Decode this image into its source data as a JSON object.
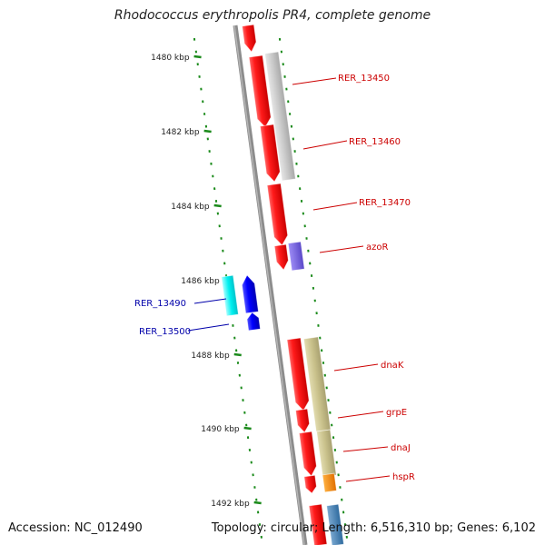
{
  "title": "Rhodococcus erythropolis PR4, complete genome",
  "footer": {
    "accession": "Accession: NC_012490",
    "topology": "Topology: circular; Length: 6,516,310 bp; Genes: 6,102"
  },
  "ruler": {
    "unit": "kbp",
    "labels": [
      "1480 kbp",
      "1482 kbp",
      "1484 kbp",
      "1486 kbp",
      "1488 kbp",
      "1490 kbp",
      "1492 kbp"
    ]
  },
  "gene_labels": [
    {
      "name": "RER_13450",
      "color": "#cc0000"
    },
    {
      "name": "RER_13460",
      "color": "#cc0000"
    },
    {
      "name": "RER_13470",
      "color": "#cc0000"
    },
    {
      "name": "azoR",
      "color": "#cc0000"
    },
    {
      "name": "RER_13490",
      "color": "#0000aa"
    },
    {
      "name": "RER_13500",
      "color": "#0000aa"
    },
    {
      "name": "dnaK",
      "color": "#cc0000"
    },
    {
      "name": "grpE",
      "color": "#cc0000"
    },
    {
      "name": "dnaJ",
      "color": "#cc0000"
    },
    {
      "name": "hspR",
      "color": "#cc0000"
    }
  ],
  "colors": {
    "forward_cds": "#ff0000",
    "reverse_cds": "#0000ff",
    "backbone": "#8c8c8c",
    "tick": "#1a8a1a",
    "cog_grey": "#c8c8c8",
    "cog_purple": "#7b68ee",
    "cog_cyan": "#00f5f5",
    "cog_khaki": "#c8c08a",
    "cog_orange": "#ff8c00",
    "cog_steelblue": "#4682b4"
  }
}
